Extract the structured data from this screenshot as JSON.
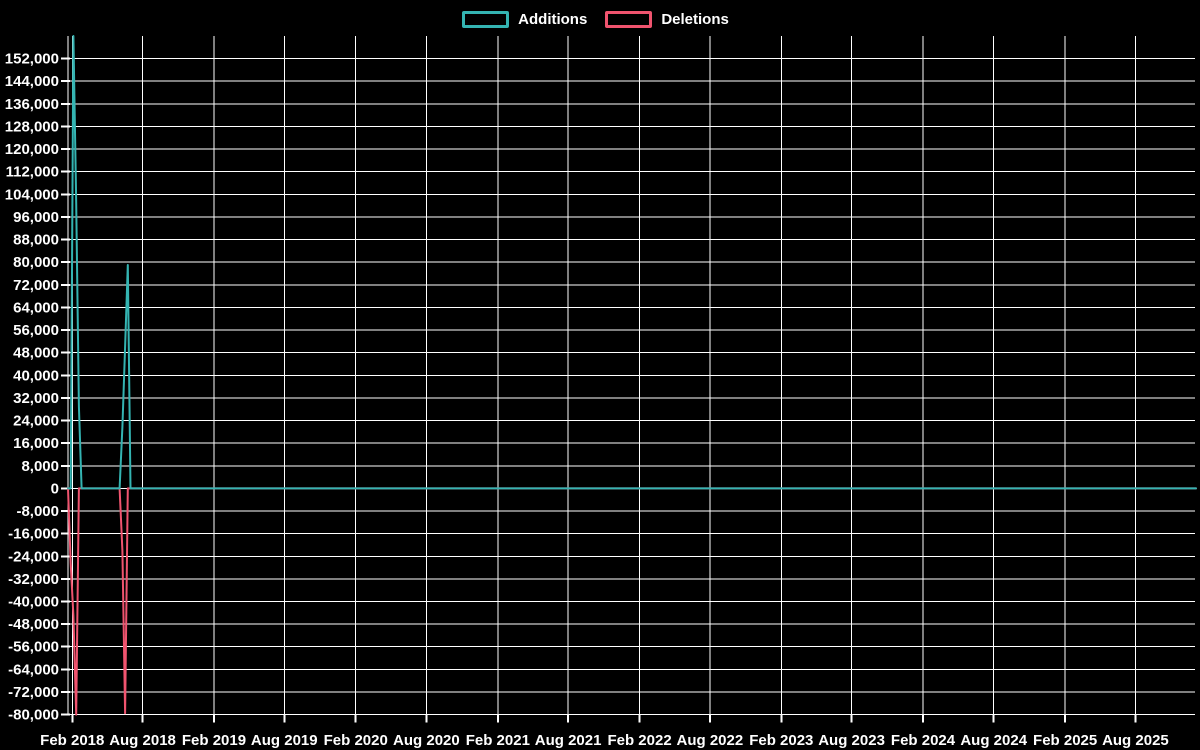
{
  "legend": {
    "additions_label": "Additions",
    "deletions_label": "Deletions"
  },
  "colors": {
    "background": "#000000",
    "grid": "#ffffff",
    "text": "#ffffff"
  },
  "chart_data": {
    "type": "line",
    "title": "",
    "grid": true,
    "legend_position": "top-center",
    "x_axis": {
      "start": "2018-01-21",
      "end": "2026-01-04",
      "tick_format": "Mon YYYY"
    },
    "y_axis": {
      "min": -80000,
      "max": 160000,
      "step": 8000
    },
    "x_ticks": [
      {
        "label": "Feb 2018",
        "date": "2018-02-01"
      },
      {
        "label": "Aug 2018",
        "date": "2018-08-01"
      },
      {
        "label": "Feb 2019",
        "date": "2019-02-01"
      },
      {
        "label": "Aug 2019",
        "date": "2019-08-01"
      },
      {
        "label": "Feb 2020",
        "date": "2020-02-01"
      },
      {
        "label": "Aug 2020",
        "date": "2020-08-01"
      },
      {
        "label": "Feb 2021",
        "date": "2021-02-01"
      },
      {
        "label": "Aug 2021",
        "date": "2021-08-01"
      },
      {
        "label": "Feb 2022",
        "date": "2022-02-01"
      },
      {
        "label": "Aug 2022",
        "date": "2022-08-01"
      },
      {
        "label": "Feb 2023",
        "date": "2023-02-01"
      },
      {
        "label": "Aug 2023",
        "date": "2023-08-01"
      },
      {
        "label": "Feb 2024",
        "date": "2024-02-01"
      },
      {
        "label": "Aug 2024",
        "date": "2024-08-01"
      },
      {
        "label": "Feb 2025",
        "date": "2025-02-01"
      },
      {
        "label": "Aug 2025",
        "date": "2025-08-01"
      }
    ],
    "y_ticks": [
      {
        "label": "152,000",
        "value": 152000
      },
      {
        "label": "144,000",
        "value": 144000
      },
      {
        "label": "136,000",
        "value": 136000
      },
      {
        "label": "128,000",
        "value": 128000
      },
      {
        "label": "120,000",
        "value": 120000
      },
      {
        "label": "112,000",
        "value": 112000
      },
      {
        "label": "104,000",
        "value": 104000
      },
      {
        "label": "96,000",
        "value": 96000
      },
      {
        "label": "88,000",
        "value": 88000
      },
      {
        "label": "80,000",
        "value": 80000
      },
      {
        "label": "72,000",
        "value": 72000
      },
      {
        "label": "64,000",
        "value": 64000
      },
      {
        "label": "56,000",
        "value": 56000
      },
      {
        "label": "48,000",
        "value": 48000
      },
      {
        "label": "40,000",
        "value": 40000
      },
      {
        "label": "32,000",
        "value": 32000
      },
      {
        "label": "24,000",
        "value": 24000
      },
      {
        "label": "16,000",
        "value": 16000
      },
      {
        "label": "8,000",
        "value": 8000
      },
      {
        "label": "0",
        "value": 0
      },
      {
        "label": "-8,000",
        "value": -8000
      },
      {
        "label": "-16,000",
        "value": -16000
      },
      {
        "label": "-24,000",
        "value": -24000
      },
      {
        "label": "-32,000",
        "value": -32000
      },
      {
        "label": "-40,000",
        "value": -40000
      },
      {
        "label": "-48,000",
        "value": -48000
      },
      {
        "label": "-56,000",
        "value": -56000
      },
      {
        "label": "-64,000",
        "value": -64000
      },
      {
        "label": "-72,000",
        "value": -72000
      },
      {
        "label": "-80,000",
        "value": -80000
      }
    ],
    "series": [
      {
        "name": "Additions",
        "color": "#34b4b2",
        "points": [
          [
            "2018-01-21",
            0
          ],
          [
            "2018-01-28",
            0
          ],
          [
            "2018-02-04",
            160000
          ],
          [
            "2018-02-11",
            101000
          ],
          [
            "2018-02-18",
            29000
          ],
          [
            "2018-02-25",
            0
          ],
          [
            "2018-06-03",
            0
          ],
          [
            "2018-06-10",
            21700
          ],
          [
            "2018-06-17",
            50000
          ],
          [
            "2018-06-24",
            79000
          ],
          [
            "2018-07-01",
            0
          ],
          [
            "2026-01-04",
            0
          ]
        ]
      },
      {
        "name": "Deletions",
        "color": "#f0546f",
        "points": [
          [
            "2018-01-21",
            0
          ],
          [
            "2018-01-28",
            -26500
          ],
          [
            "2018-02-04",
            -45000
          ],
          [
            "2018-02-11",
            -80000
          ],
          [
            "2018-02-18",
            0
          ],
          [
            "2018-06-03",
            0
          ],
          [
            "2018-06-10",
            -22000
          ],
          [
            "2018-06-17",
            -79500
          ],
          [
            "2018-06-24",
            0
          ],
          [
            "2026-01-04",
            0
          ]
        ]
      }
    ]
  }
}
